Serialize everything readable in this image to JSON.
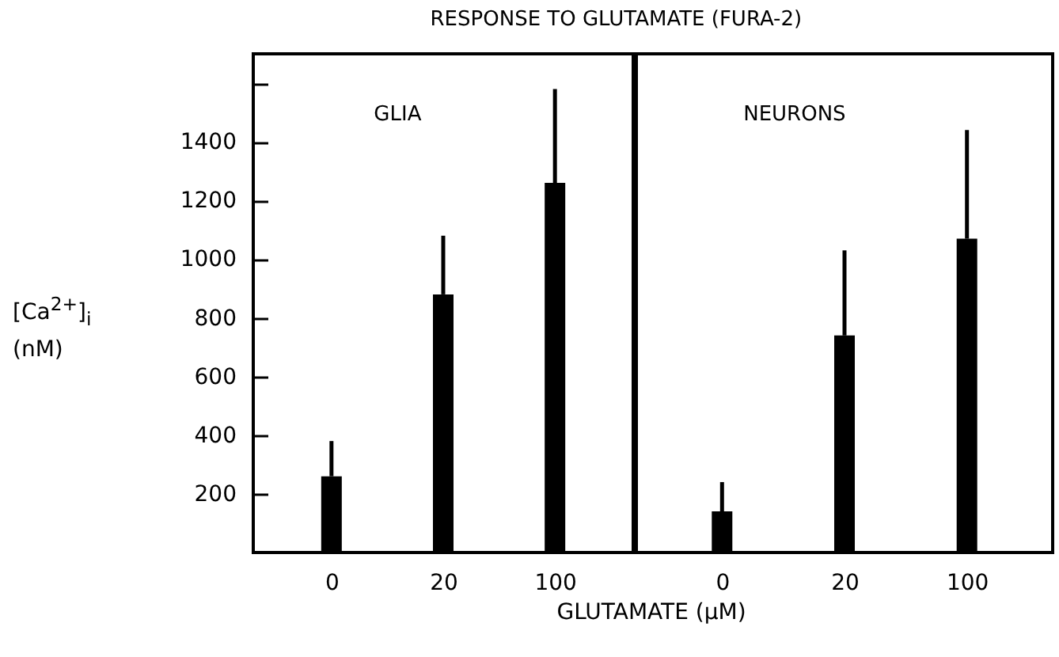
{
  "chart_data": [
    {
      "type": "bar",
      "title": "RESPONSE TO GLUTAMATE (FURA-2)",
      "xlabel": "GLUTAMATE (μM)",
      "ylabel": "[Ca$^{2+}$]$_{i}$ (nM)",
      "annotations": [
        "GLIA"
      ],
      "categories": [
        "0",
        "20",
        "100"
      ],
      "values": [
        260,
        880,
        1260
      ],
      "errors": [
        [
          260,
          380
        ],
        [
          880,
          1080
        ],
        [
          1260,
          1580
        ]
      ],
      "color": "#000000",
      "ylim": [
        0,
        1700
      ],
      "yticks": [
        200,
        400,
        600,
        800,
        1000,
        1200,
        1400,
        {
          "value": 1600,
          "label": null
        }
      ]
    },
    {
      "type": "bar",
      "annotations": [
        "NEURONS"
      ],
      "categories": [
        "0",
        "20",
        "100"
      ],
      "values": [
        140,
        740,
        1070
      ],
      "errors": [
        [
          140,
          240
        ],
        [
          740,
          1030
        ],
        [
          1070,
          1440
        ]
      ],
      "color": "#000000",
      "ylim": [
        0,
        1700
      ],
      "tick_labels": "x"
    }
  ]
}
